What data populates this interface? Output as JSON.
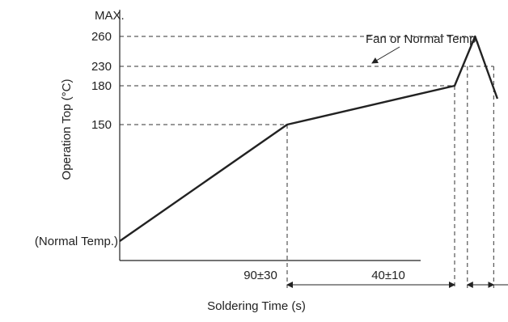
{
  "chart_data": {
    "type": "line",
    "title": "",
    "xlabel": "Soldering Time (s)",
    "ylabel": "Operation Top (°C)",
    "y_max_label": "MAX.",
    "y_tick_labels": [
      "(Normal Temp.)",
      "150",
      "180",
      "230",
      "260"
    ],
    "y_ticks": [
      150,
      180,
      230,
      260
    ],
    "series": [
      {
        "points": [
          {
            "x": 0,
            "y": 25
          },
          {
            "x": 90,
            "y": 150
          },
          {
            "x": 180,
            "y": 180
          },
          {
            "x": 191,
            "y": 260
          },
          {
            "x": 203,
            "y": 170
          }
        ]
      }
    ],
    "annotations": {
      "fan": "Fan or Normal Temp.",
      "interval_1": "90±30",
      "interval_2": "40±10"
    }
  },
  "colors": {
    "line": "#222222",
    "dashed": "#333333",
    "text": "#222222"
  }
}
